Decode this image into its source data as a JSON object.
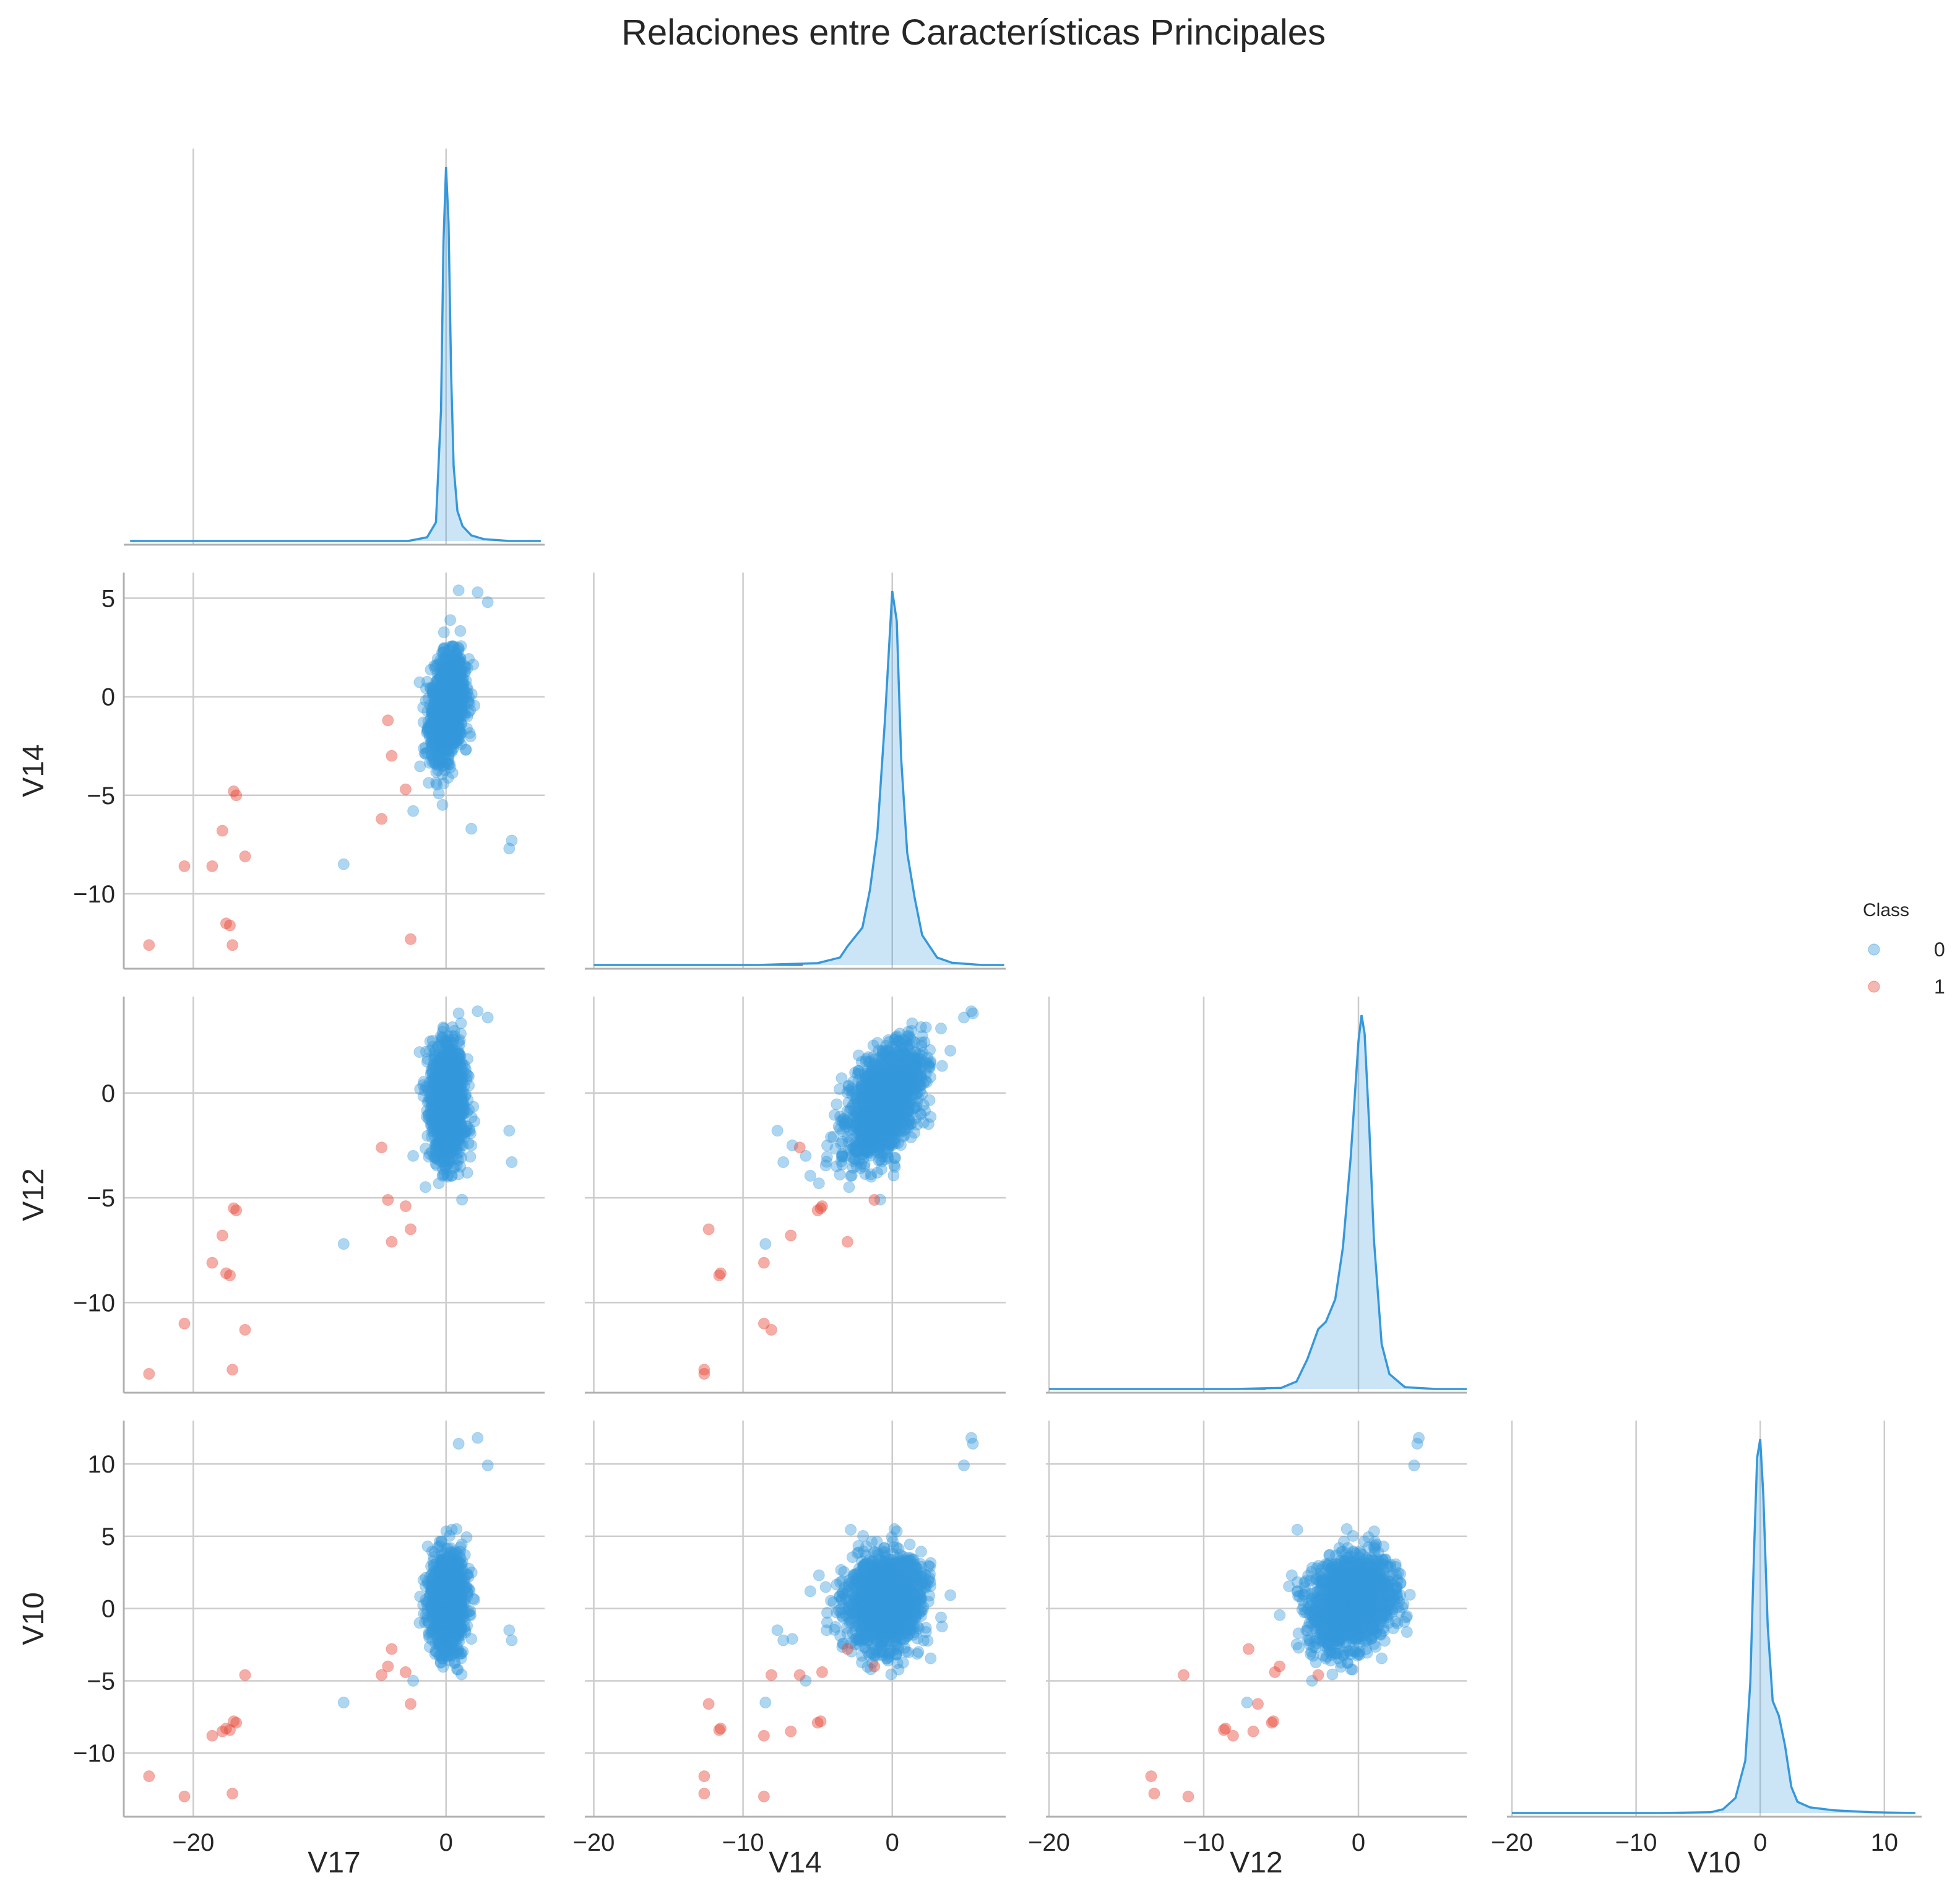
{
  "title": "Relaciones entre Características Principales",
  "colors": {
    "class0": "#3498db",
    "class1": "#e74c3c",
    "grid": "#cccccc",
    "axis": "#b0b0b0",
    "text": "#262626"
  },
  "chart_data": {
    "type": "pairplot",
    "variables": [
      "V17",
      "V14",
      "V12",
      "V10"
    ],
    "hue": "Class",
    "corner": true,
    "grid": true,
    "legend": {
      "title": "Class",
      "placement": "right",
      "entries": [
        {
          "label": "0",
          "color": "#3498db"
        },
        {
          "label": "1",
          "color": "#e74c3c"
        }
      ]
    },
    "axes": {
      "V17": {
        "range": [
          -25.5,
          7.8
        ],
        "ticks": [
          -20,
          0
        ],
        "tick_labels": [
          "−20",
          "0"
        ]
      },
      "V14": {
        "range": [
          -20.6,
          7.6
        ],
        "ticks": [
          -20,
          -10,
          0
        ],
        "tick_labels": [
          "−20",
          "−10",
          "0"
        ],
        "y_range": [
          -13.8,
          6.3
        ],
        "y_ticks": [
          -10,
          -5,
          0,
          5
        ],
        "y_tick_labels": [
          "−10",
          "−5",
          "0",
          "5"
        ]
      },
      "V12": {
        "range": [
          -20.2,
          7.0
        ],
        "ticks": [
          -20,
          -10,
          0
        ],
        "tick_labels": [
          "−20",
          "−10",
          "0"
        ],
        "y_range": [
          -14.3,
          4.6
        ],
        "y_ticks": [
          -10,
          -5,
          0
        ],
        "y_tick_labels": [
          "−10",
          "−5",
          "0"
        ]
      },
      "V10": {
        "range": [
          -20.4,
          13.0
        ],
        "ticks": [
          -20,
          -10,
          0,
          10
        ],
        "tick_labels": [
          "−20",
          "−10",
          "0",
          "10"
        ],
        "y_range": [
          -14.4,
          13.0
        ],
        "y_ticks": [
          -10,
          -5,
          0,
          5,
          10
        ],
        "y_tick_labels": [
          "−10",
          "−5",
          "0",
          "5",
          "10"
        ]
      }
    },
    "class1_points": [
      {
        "V17": -23.5,
        "V14": -12.6,
        "V12": -13.4,
        "V10": -11.6
      },
      {
        "V17": -20.7,
        "V14": -8.6,
        "V12": -11.0,
        "V10": -13.0
      },
      {
        "V17": -18.5,
        "V14": -8.6,
        "V12": -8.1,
        "V10": -8.8
      },
      {
        "V17": -17.7,
        "V14": -6.8,
        "V12": -6.8,
        "V10": -8.5
      },
      {
        "V17": -17.4,
        "V14": -11.5,
        "V12": -8.6,
        "V10": -8.3
      },
      {
        "V17": -17.1,
        "V14": -11.6,
        "V12": -8.7,
        "V10": -8.4
      },
      {
        "V17": -16.9,
        "V14": -12.6,
        "V12": -13.2,
        "V10": -12.8
      },
      {
        "V17": -16.8,
        "V14": -4.8,
        "V12": -5.5,
        "V10": -7.8
      },
      {
        "V17": -16.6,
        "V14": -5.0,
        "V12": -5.6,
        "V10": -7.9
      },
      {
        "V17": -15.9,
        "V14": -8.1,
        "V12": -11.3,
        "V10": -4.6
      },
      {
        "V17": -5.1,
        "V14": -6.2,
        "V12": -2.6,
        "V10": -4.6
      },
      {
        "V17": -4.6,
        "V14": -1.2,
        "V12": -5.1,
        "V10": -4.0
      },
      {
        "V17": -4.3,
        "V14": -3.0,
        "V12": -7.1,
        "V10": -2.8
      },
      {
        "V17": -3.2,
        "V14": -4.7,
        "V12": -5.4,
        "V10": -4.4
      },
      {
        "V17": -2.8,
        "V14": -12.3,
        "V12": -6.5,
        "V10": -6.6
      }
    ],
    "class0_outliers": [
      {
        "V17": 1.0,
        "V14": 5.4,
        "V12": 3.8,
        "V10": 11.4
      },
      {
        "V17": 2.5,
        "V14": 5.3,
        "V12": 3.9,
        "V10": 11.8
      },
      {
        "V17": 3.3,
        "V14": 4.8,
        "V12": 3.6,
        "V10": 9.9
      },
      {
        "V17": 5.2,
        "V14": -7.3,
        "V12": -3.3,
        "V10": -2.2
      },
      {
        "V17": 5.0,
        "V14": -7.7,
        "V12": -1.8,
        "V10": -1.5
      },
      {
        "V17": 2.0,
        "V14": -6.7,
        "V12": -2.5,
        "V10": -2.1
      },
      {
        "V17": -8.1,
        "V14": -8.5,
        "V12": -7.2,
        "V10": -6.5
      },
      {
        "V17": -2.6,
        "V14": -5.8,
        "V12": -3.0,
        "V10": -5.0
      }
    ],
    "class0_core": {
      "V17": {
        "mean": 0.1,
        "sd": 0.65
      },
      "V14": {
        "mean": -0.5,
        "sd": 1.25
      },
      "V12": {
        "mean": -0.4,
        "sd": 1.3
      },
      "V10": {
        "mean": 0.5,
        "sd": 1.6
      },
      "n_points": 1500
    },
    "kde_class0": {
      "V17": {
        "x": [
          -25,
          -3,
          -1.5,
          -0.8,
          -0.4,
          -0.2,
          0,
          0.2,
          0.4,
          0.6,
          0.9,
          1.3,
          2,
          3,
          5,
          7.5
        ],
        "y": [
          0,
          0,
          0.01,
          0.05,
          0.35,
          0.8,
          1.0,
          0.85,
          0.45,
          0.2,
          0.08,
          0.04,
          0.015,
          0.005,
          0,
          0
        ]
      },
      "V14": {
        "x": [
          -20,
          -9,
          -5,
          -3.5,
          -3,
          -2,
          -1.5,
          -1,
          -0.5,
          0,
          0.3,
          0.6,
          1,
          1.5,
          2,
          3,
          4,
          6,
          7.5
        ],
        "y": [
          0,
          0,
          0.005,
          0.02,
          0.05,
          0.1,
          0.2,
          0.35,
          0.65,
          1.0,
          0.92,
          0.55,
          0.3,
          0.18,
          0.08,
          0.02,
          0.006,
          0,
          0
        ]
      },
      "V12": {
        "x": [
          -20,
          -8,
          -5,
          -4,
          -3.3,
          -2.6,
          -2.1,
          -1.5,
          -1,
          -0.5,
          0,
          0.2,
          0.4,
          0.7,
          1,
          1.5,
          2,
          3,
          5,
          7
        ],
        "y": [
          0,
          0,
          0.003,
          0.02,
          0.08,
          0.16,
          0.18,
          0.24,
          0.38,
          0.62,
          0.93,
          1.0,
          0.95,
          0.7,
          0.4,
          0.12,
          0.04,
          0.005,
          0,
          0
        ]
      },
      "V10": {
        "x": [
          -20,
          -8,
          -4,
          -3,
          -2,
          -1.2,
          -0.8,
          -0.5,
          -0.25,
          0,
          0.25,
          0.6,
          1,
          1.5,
          2,
          2.5,
          3,
          4,
          6,
          9,
          12.5
        ],
        "y": [
          0,
          0,
          0.002,
          0.01,
          0.04,
          0.14,
          0.35,
          0.7,
          0.95,
          1.0,
          0.85,
          0.5,
          0.3,
          0.26,
          0.18,
          0.07,
          0.03,
          0.015,
          0.007,
          0.002,
          0
        ]
      }
    }
  }
}
